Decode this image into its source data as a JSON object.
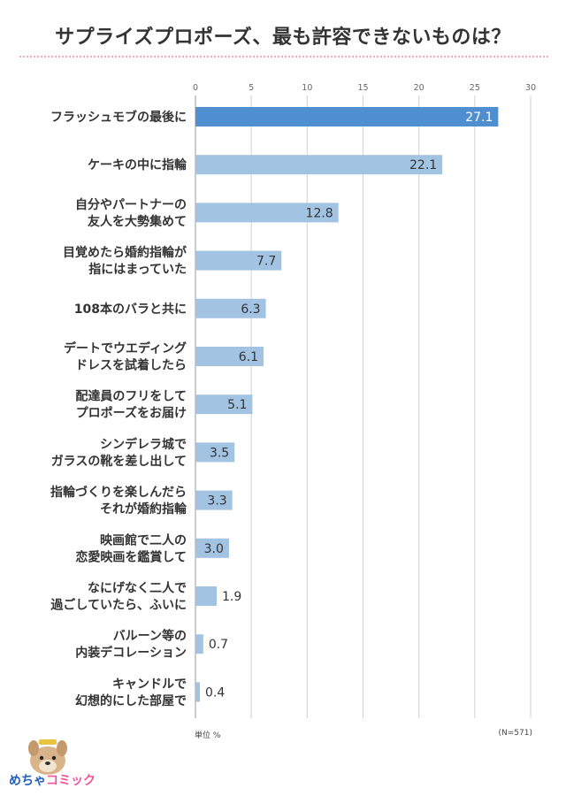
{
  "title": "サプライズプロポーズ、最も許容できないものは？",
  "colors": {
    "highlight_bar": "#4f8fd0",
    "bar": "#a3c3e3",
    "accent_rule": "#f2a7b8",
    "grid": "#d0d0d0"
  },
  "chart_data": {
    "type": "bar",
    "orientation": "horizontal",
    "categories": [
      [
        "フラッシュモブの最後に"
      ],
      [
        "ケーキの中に指輪"
      ],
      [
        "自分やパートナーの",
        "友人を大勢集めて"
      ],
      [
        "目覚めたら婚約指輪が",
        "指にはまっていた"
      ],
      [
        "108本のバラと共に"
      ],
      [
        "デートでウエディング",
        "ドレスを試着したら"
      ],
      [
        "配達員のフリをして",
        "プロポーズをお届け"
      ],
      [
        "シンデレラ城で",
        "ガラスの靴を差し出して"
      ],
      [
        "指輪づくりを楽しんだら",
        "それが婚約指輪"
      ],
      [
        "映画館で二人の",
        "恋愛映画を鑑賞して"
      ],
      [
        "なにげなく二人で",
        "過ごしていたら、ふいに"
      ],
      [
        "バルーン等の",
        "内装デコレーション"
      ],
      [
        "キャンドルで",
        "幻想的にした部屋で"
      ]
    ],
    "values": [
      27.1,
      22.1,
      12.8,
      7.7,
      6.3,
      6.1,
      5.1,
      3.5,
      3.3,
      3.0,
      1.9,
      0.7,
      0.4
    ],
    "value_labels": [
      "27.1",
      "22.1",
      "12.8",
      "7.7",
      "6.3",
      "6.1",
      "5.1",
      "3.5",
      "3.3",
      "3.0",
      "1.9",
      "0.7",
      "0.4"
    ],
    "xlim": [
      0,
      30
    ],
    "xticks": [
      0,
      5,
      10,
      15,
      20,
      25,
      30
    ],
    "grid": true,
    "unit_label": "単位 %",
    "sample_label": "(N=571)"
  },
  "logo": {
    "part1": "めちゃ",
    "part2": "コミック"
  }
}
